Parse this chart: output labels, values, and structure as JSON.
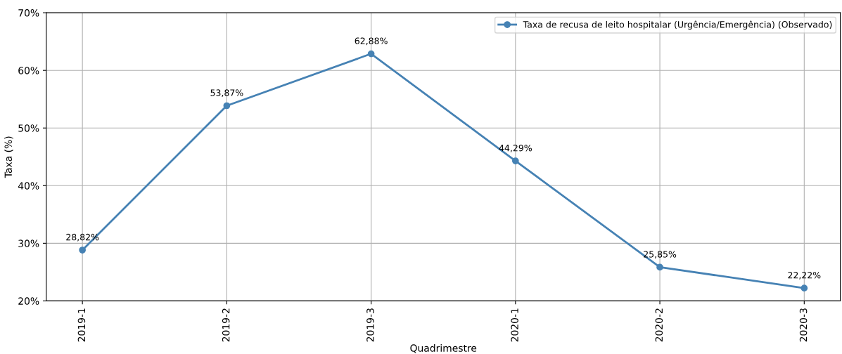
{
  "chart_data": {
    "type": "line",
    "xlabel": "Quadrimestre",
    "ylabel": "Taxa (%)",
    "categories": [
      "2019-1",
      "2019-2",
      "2019-3",
      "2020-1",
      "2020-2",
      "2020-3"
    ],
    "series": [
      {
        "name": "Taxa de recusa de leito hospitalar (Urgência/Emergência) (Observado)",
        "color": "#4682b4",
        "values": [
          28.82,
          53.87,
          62.88,
          44.29,
          25.85,
          22.22
        ],
        "value_labels": [
          "28,82%",
          "53,87%",
          "62,88%",
          "44,29%",
          "25,85%",
          "22,22%"
        ]
      }
    ],
    "ylim": [
      20,
      70
    ],
    "yticks": [
      {
        "value": 20,
        "label": "20%"
      },
      {
        "value": 30,
        "label": "30%"
      },
      {
        "value": 40,
        "label": "40%"
      },
      {
        "value": 50,
        "label": "50%"
      },
      {
        "value": 60,
        "label": "60%"
      },
      {
        "value": 70,
        "label": "70%"
      }
    ],
    "grid": true,
    "legend": "top right",
    "marker": "circle",
    "line_style": "solid"
  }
}
